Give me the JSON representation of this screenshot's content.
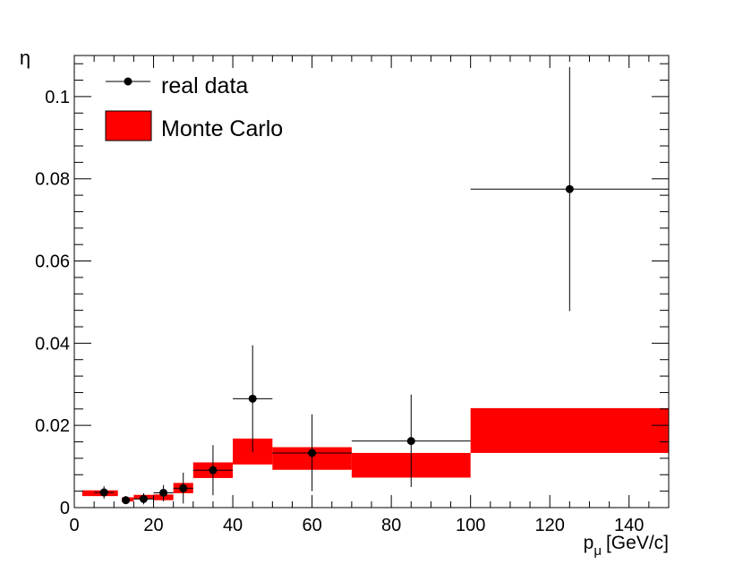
{
  "chart_data": {
    "type": "scatter",
    "title": "",
    "ylabel": "η",
    "xlabel": "p",
    "xlabel_subscript": "μ",
    "xlabel_unit": "[GeV/c]",
    "xlim": [
      0,
      150
    ],
    "ylim": [
      0,
      0.11
    ],
    "x_ticks": [
      0,
      20,
      40,
      60,
      80,
      100,
      120,
      140
    ],
    "y_ticks": [
      0,
      0.02,
      0.04,
      0.06,
      0.08,
      0.1
    ],
    "y_tick_labels": [
      "0",
      "0.02",
      "0.04",
      "0.06",
      "0.08",
      "0.1"
    ],
    "grid": false,
    "legend_position": "top-left",
    "series": [
      {
        "name": "real data",
        "kind": "points-with-errors",
        "color": "#000000",
        "points": [
          {
            "x": 7.5,
            "y": 0.0037,
            "xlo": 5,
            "xhi": 10,
            "ylo": 0.0022,
            "yhi": 0.0052
          },
          {
            "x": 13,
            "y": 0.0018,
            "xlo": 12,
            "xhi": 14,
            "ylo": 0.001,
            "yhi": 0.0028
          },
          {
            "x": 17.5,
            "y": 0.0021,
            "xlo": 15,
            "xhi": 20,
            "ylo": 0.0008,
            "yhi": 0.0035
          },
          {
            "x": 22.5,
            "y": 0.0036,
            "xlo": 20,
            "xhi": 25,
            "ylo": 0.0015,
            "yhi": 0.0055
          },
          {
            "x": 27.5,
            "y": 0.0047,
            "xlo": 25,
            "xhi": 30,
            "ylo": 0.001,
            "yhi": 0.0085
          },
          {
            "x": 35,
            "y": 0.0091,
            "xlo": 30,
            "xhi": 40,
            "ylo": 0.003,
            "yhi": 0.0152
          },
          {
            "x": 45,
            "y": 0.0265,
            "xlo": 40,
            "xhi": 50,
            "ylo": 0.0135,
            "yhi": 0.0395
          },
          {
            "x": 60,
            "y": 0.0133,
            "xlo": 50,
            "xhi": 70,
            "ylo": 0.004,
            "yhi": 0.0227
          },
          {
            "x": 85,
            "y": 0.0162,
            "xlo": 70,
            "xhi": 100,
            "ylo": 0.005,
            "yhi": 0.0275
          },
          {
            "x": 125,
            "y": 0.0775,
            "xlo": 100,
            "xhi": 150,
            "ylo": 0.0478,
            "yhi": 0.1072
          }
        ]
      },
      {
        "name": "Monte Carlo",
        "kind": "error-bands",
        "color": "#ff0000",
        "bins": [
          {
            "xlo": 2,
            "xhi": 11,
            "ylo": 0.0028,
            "yhi": 0.0042
          },
          {
            "xlo": 12,
            "xhi": 15,
            "ylo": 0.0015,
            "yhi": 0.0025
          },
          {
            "xlo": 15,
            "xhi": 20,
            "ylo": 0.002,
            "yhi": 0.0031
          },
          {
            "xlo": 20,
            "xhi": 25,
            "ylo": 0.0018,
            "yhi": 0.0032
          },
          {
            "xlo": 25,
            "xhi": 30,
            "ylo": 0.0035,
            "yhi": 0.006
          },
          {
            "xlo": 30,
            "xhi": 40,
            "ylo": 0.0072,
            "yhi": 0.011
          },
          {
            "xlo": 40,
            "xhi": 50,
            "ylo": 0.0105,
            "yhi": 0.0168
          },
          {
            "xlo": 50,
            "xhi": 70,
            "ylo": 0.0092,
            "yhi": 0.0147
          },
          {
            "xlo": 70,
            "xhi": 100,
            "ylo": 0.0073,
            "yhi": 0.0133
          },
          {
            "xlo": 100,
            "xhi": 150,
            "ylo": 0.0133,
            "yhi": 0.0242
          }
        ]
      }
    ]
  }
}
